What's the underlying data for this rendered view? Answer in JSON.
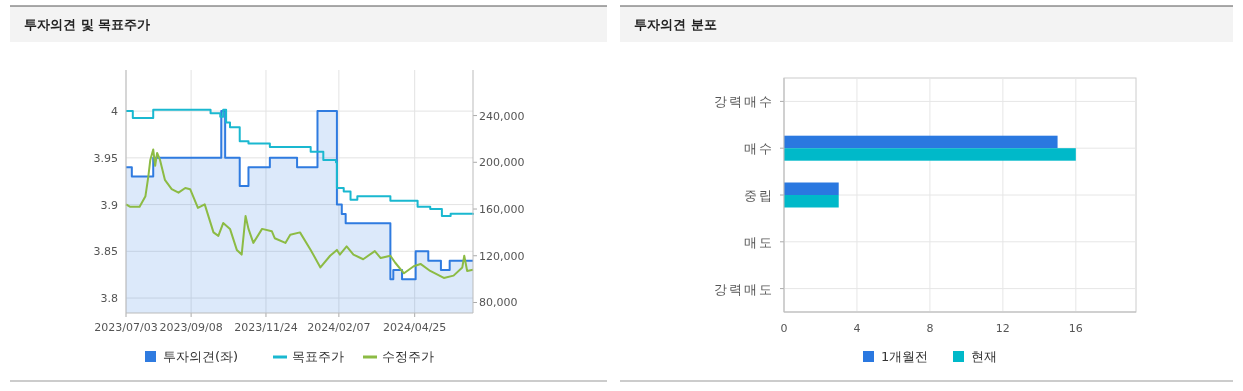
{
  "chart_data": [
    {
      "type": "line",
      "title": "투자의견 및 목표주가",
      "xlim": [
        "2023-07-03",
        "2024-06-24"
      ],
      "xticks": [
        {
          "value": "2023-07-03",
          "label": "2023/07/03"
        },
        {
          "value": "2023-09-08",
          "label": "2023/09/08"
        },
        {
          "value": "2023-11-24",
          "label": "2023/11/24"
        },
        {
          "value": "2024-02-07",
          "label": "2024/02/07"
        },
        {
          "value": "2024-04-25",
          "label": "2024/04/25"
        }
      ],
      "ylim": [
        3.784,
        4.044
      ],
      "yticks": [
        3.8,
        3.85,
        3.9,
        3.95,
        4
      ],
      "y2lim": [
        71000,
        279000
      ],
      "y2ticks": [
        {
          "value": 80000,
          "label": "80,000"
        },
        {
          "value": 120000,
          "label": "120,000"
        },
        {
          "value": 160000,
          "label": "160,000"
        },
        {
          "value": 200000,
          "label": "200,000"
        },
        {
          "value": 240000,
          "label": "240,000"
        }
      ],
      "grid": true,
      "legend": "bottom",
      "series": [
        {
          "name": "투자의견(좌)",
          "type": "area",
          "color": "#2f7be0",
          "x": [
            "2023-07-03",
            "2023-07-09",
            "2023-07-09",
            "2023-07-31",
            "2023-07-31",
            "2023-10-09",
            "2023-10-09",
            "2023-10-13",
            "2023-10-13",
            "2023-10-28",
            "2023-10-28",
            "2023-11-06",
            "2023-11-06",
            "2023-11-28",
            "2023-11-28",
            "2023-12-26",
            "2023-12-26",
            "2024-01-16",
            "2024-01-16",
            "2024-02-05",
            "2024-02-05",
            "2024-02-10",
            "2024-02-10",
            "2024-02-14",
            "2024-02-14",
            "2024-03-31",
            "2024-03-31",
            "2024-04-03",
            "2024-04-03",
            "2024-04-12",
            "2024-04-12",
            "2024-04-26",
            "2024-04-26",
            "2024-05-09",
            "2024-05-09",
            "2024-05-22",
            "2024-05-22",
            "2024-05-31",
            "2024-05-31",
            "2024-06-24"
          ],
          "values": [
            3.94,
            3.94,
            3.93,
            3.93,
            3.95,
            3.95,
            4.0,
            4.0,
            3.95,
            3.95,
            3.92,
            3.92,
            3.94,
            3.94,
            3.95,
            3.95,
            3.94,
            3.94,
            4.0,
            4.0,
            3.9,
            3.9,
            3.89,
            3.89,
            3.88,
            3.88,
            3.82,
            3.82,
            3.83,
            3.83,
            3.82,
            3.82,
            3.85,
            3.85,
            3.84,
            3.84,
            3.83,
            3.83,
            3.84,
            3.84
          ]
        },
        {
          "name": "목표주가",
          "type": "step",
          "axis": "y2",
          "color": "#1ab8d0",
          "x": [
            "2023-07-03",
            "2023-07-10",
            "2023-07-31",
            "2023-09-28",
            "2023-10-08",
            "2023-10-11",
            "2023-10-14",
            "2023-10-18",
            "2023-10-28",
            "2023-11-06",
            "2023-11-28",
            "2024-01-09",
            "2024-01-22",
            "2024-02-04",
            "2024-02-05",
            "2024-02-12",
            "2024-02-19",
            "2024-02-26",
            "2024-03-31",
            "2024-04-28",
            "2024-05-11",
            "2024-05-23",
            "2024-06-01",
            "2024-06-24"
          ],
          "values": [
            244000,
            238000,
            245000,
            242000,
            239000,
            245000,
            234000,
            230000,
            218000,
            216000,
            213000,
            209000,
            202000,
            200000,
            178000,
            175000,
            168000,
            171000,
            167000,
            162000,
            160000,
            154000,
            156000,
            155000
          ]
        },
        {
          "name": "수정주가",
          "type": "line",
          "axis": "y2",
          "color": "#8cbb44",
          "x": [
            "2023-07-03",
            "2023-07-07",
            "2023-07-17",
            "2023-07-23",
            "2023-07-26",
            "2023-07-28",
            "2023-07-31",
            "2023-08-02",
            "2023-08-04",
            "2023-08-07",
            "2023-08-12",
            "2023-08-19",
            "2023-08-26",
            "2023-09-02",
            "2023-09-07",
            "2023-09-15",
            "2023-09-22",
            "2023-10-01",
            "2023-10-06",
            "2023-10-11",
            "2023-10-18",
            "2023-10-25",
            "2023-10-30",
            "2023-11-03",
            "2023-11-06",
            "2023-11-11",
            "2023-11-20",
            "2023-11-30",
            "2023-12-03",
            "2023-12-14",
            "2023-12-19",
            "2023-12-29",
            "2024-01-09",
            "2024-01-19",
            "2024-01-29",
            "2024-02-05",
            "2024-02-08",
            "2024-02-15",
            "2024-02-22",
            "2024-03-03",
            "2024-03-15",
            "2024-03-21",
            "2024-03-31",
            "2024-04-05",
            "2024-04-14",
            "2024-04-24",
            "2024-05-01",
            "2024-05-11",
            "2024-05-25",
            "2024-06-04",
            "2024-06-13",
            "2024-06-15",
            "2024-06-18",
            "2024-06-24"
          ],
          "values": [
            164000,
            162000,
            162000,
            171000,
            188000,
            202000,
            211000,
            197000,
            208000,
            202000,
            185000,
            177000,
            174000,
            178000,
            177000,
            161000,
            164000,
            140000,
            137000,
            148000,
            143000,
            125000,
            121000,
            154000,
            143000,
            131000,
            143000,
            141000,
            135000,
            131000,
            138000,
            140000,
            125000,
            110000,
            120000,
            125000,
            121000,
            128000,
            121000,
            117000,
            124000,
            118000,
            120000,
            114000,
            105000,
            111000,
            113000,
            107000,
            101000,
            103000,
            110000,
            120000,
            107000,
            108000
          ]
        }
      ]
    },
    {
      "type": "bar",
      "orientation": "horizontal",
      "title": "투자의견 분포",
      "categories": [
        "강력매수",
        "매수",
        "중립",
        "매도",
        "강력매도"
      ],
      "xlim": [
        0,
        19.3
      ],
      "xticks": [
        0,
        4,
        8,
        12,
        16
      ],
      "grid": true,
      "legend": "bottom",
      "series": [
        {
          "name": "1개월전",
          "color": "#2a78e0",
          "values": [
            0,
            15,
            3,
            0,
            0
          ]
        },
        {
          "name": "현재",
          "color": "#00b9c9",
          "values": [
            0,
            16,
            3,
            0,
            0
          ]
        }
      ]
    }
  ]
}
